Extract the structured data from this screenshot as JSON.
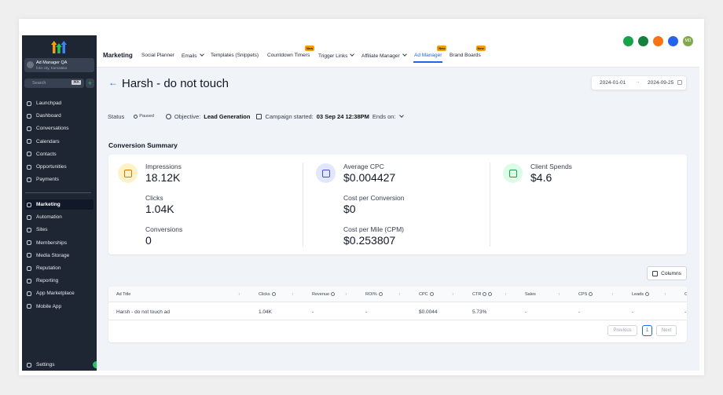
{
  "sidebar": {
    "account": {
      "name": "Ad Manager QA",
      "location": "foko city, Karnataka"
    },
    "search": "Search",
    "shortcut": "⌘K",
    "items": [
      {
        "label": "Launchpad"
      },
      {
        "label": "Dashboard"
      },
      {
        "label": "Conversations"
      },
      {
        "label": "Calendars"
      },
      {
        "label": "Contacts"
      },
      {
        "label": "Opportunities"
      },
      {
        "label": "Payments"
      }
    ],
    "items2": [
      {
        "label": "Marketing",
        "active": true
      },
      {
        "label": "Automation"
      },
      {
        "label": "Sites"
      },
      {
        "label": "Memberships"
      },
      {
        "label": "Media Storage"
      },
      {
        "label": "Reputation"
      },
      {
        "label": "Reporting"
      },
      {
        "label": "App Marketplace"
      },
      {
        "label": "Mobile App"
      }
    ],
    "settings": "Settings"
  },
  "topnav": {
    "section": "Marketing",
    "tabs": [
      {
        "label": "Social Planner"
      },
      {
        "label": "Emails",
        "dropdown": true
      },
      {
        "label": "Templates (Snippets)"
      },
      {
        "label": "Countdown Timers",
        "badge": "New"
      },
      {
        "label": "Trigger Links",
        "dropdown": true
      },
      {
        "label": "Affiliate Manager",
        "dropdown": true
      },
      {
        "label": "Ad Manager",
        "badge": "New",
        "active": true
      },
      {
        "label": "Brand Boards",
        "badge": "New"
      }
    ],
    "avatar": "MD"
  },
  "campaign": {
    "title": "Harsh - do not touch",
    "date_from": "2024-01-01",
    "date_to": "2024-09-25",
    "status_label": "Status",
    "status": "Paused",
    "objective_label": "Objective:",
    "objective": "Lead Generation",
    "started_label": "Campaign started:",
    "started": "03 Sep 24 12:38PM",
    "ends_label": "Ends on:"
  },
  "summary": {
    "title": "Conversion Summary",
    "columns": [
      [
        {
          "label": "Impressions",
          "value": "18.12K"
        },
        {
          "label": "Clicks",
          "value": "1.04K"
        },
        {
          "label": "Conversions",
          "value": "0"
        }
      ],
      [
        {
          "label": "Average CPC",
          "value": "$0.004427"
        },
        {
          "label": "Cost per Conversion",
          "value": "$0"
        },
        {
          "label": "Cost per Mile (CPM)",
          "value": "$0.253807"
        }
      ],
      [
        {
          "label": "Client Spends",
          "value": "$4.6"
        }
      ]
    ]
  },
  "table": {
    "columns_button": "Columns",
    "headers": [
      "Ad Title",
      "Clicks",
      "Revenue",
      "ROI%",
      "CPC",
      "CTR",
      "Sales",
      "CPS",
      "Leads",
      "C"
    ],
    "rows": [
      [
        "Harsh - do not touch ad",
        "1.04K",
        "-",
        "-",
        "$0.0044",
        "5.73%",
        "-",
        "-",
        "-",
        "-"
      ]
    ],
    "pagination": {
      "previous": "Previous",
      "page": "1",
      "next": "Next"
    }
  }
}
